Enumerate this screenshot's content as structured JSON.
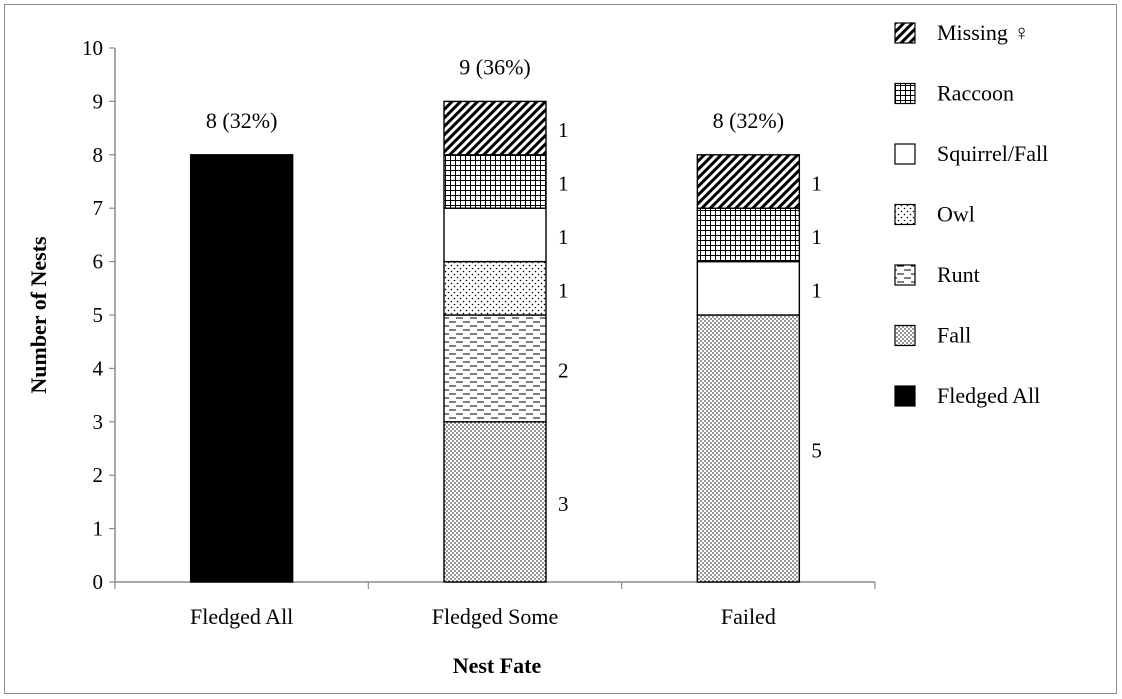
{
  "chart_data": {
    "type": "bar",
    "stacked": true,
    "title": "",
    "xlabel": "Nest Fate",
    "ylabel": "Number of Nests",
    "ylim": [
      0,
      10
    ],
    "y_ticks": [
      "0",
      "1",
      "2",
      "3",
      "4",
      "5",
      "6",
      "7",
      "8",
      "9",
      "10"
    ],
    "grid": false,
    "legend_position": "right",
    "categories": [
      "Fledged All",
      "Fledged Some",
      "Failed"
    ],
    "totals_labels": [
      "8 (32%)",
      "9 (36%)",
      "8 (32%)"
    ],
    "series": [
      {
        "name": "Fledged All",
        "pattern": "solid",
        "values": [
          8,
          0,
          0
        ],
        "labels": [
          "",
          "",
          ""
        ]
      },
      {
        "name": "Fall",
        "pattern": "dots-dense",
        "values": [
          0,
          3,
          5
        ],
        "labels": [
          "",
          "3",
          "5"
        ]
      },
      {
        "name": "Runt",
        "pattern": "dashes",
        "values": [
          0,
          2,
          0
        ],
        "labels": [
          "",
          "2",
          ""
        ]
      },
      {
        "name": "Owl",
        "pattern": "dots",
        "values": [
          0,
          1,
          0
        ],
        "labels": [
          "",
          "1",
          ""
        ]
      },
      {
        "name": "Squirrel/Fall",
        "pattern": "white",
        "values": [
          0,
          1,
          1
        ],
        "labels": [
          "",
          "1",
          "1"
        ]
      },
      {
        "name": "Raccoon",
        "pattern": "grid",
        "values": [
          0,
          1,
          1
        ],
        "labels": [
          "",
          "1",
          "1"
        ]
      },
      {
        "name": "Missing ♀",
        "pattern": "diagonal",
        "values": [
          0,
          1,
          1
        ],
        "labels": [
          "",
          "1",
          "1"
        ]
      }
    ],
    "legend_order": [
      "Missing ♀",
      "Raccoon",
      "Squirrel/Fall",
      "Owl",
      "Runt",
      "Fall",
      "Fledged All"
    ],
    "colors": {
      "bar_fill": "#000000",
      "bar_stroke": "#000000",
      "axis": "#8c8c8c",
      "frame": "#8c8c8c"
    }
  }
}
